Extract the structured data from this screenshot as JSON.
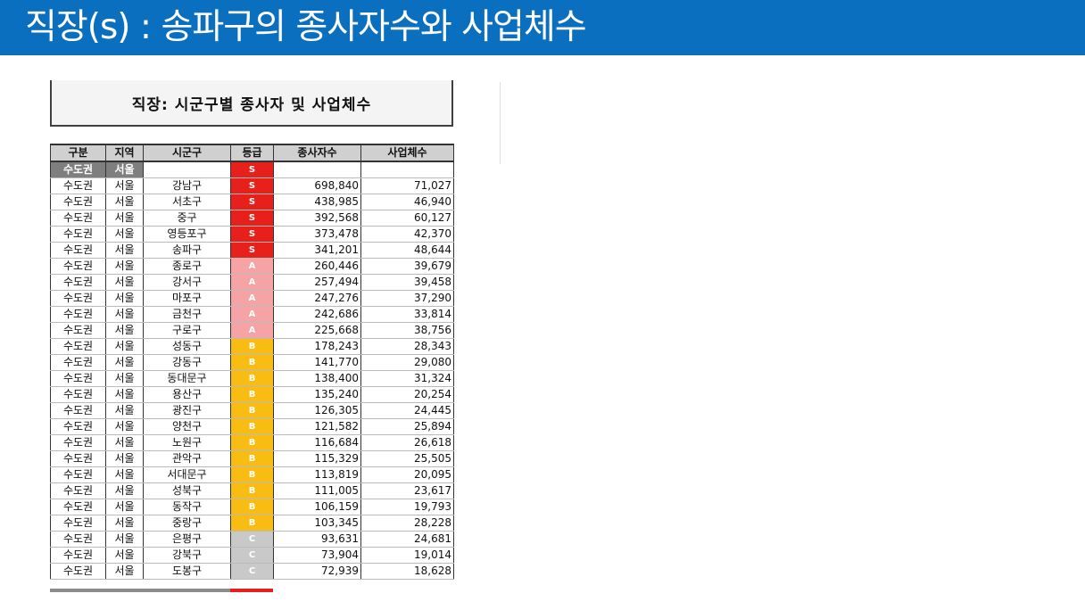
{
  "banner": {
    "title": "직장(s) : 송파구의 종사자수와 사업체수"
  },
  "sheet": {
    "title": "직장: 시군구별 종사자 및 사업체수",
    "headers": [
      "구분",
      "지역",
      "시군구",
      "등급",
      "종사자수",
      "사업체수"
    ],
    "subheader": {
      "region": "수도권",
      "area": "서울",
      "grade": "S"
    },
    "rows": [
      {
        "region": "수도권",
        "area": "서울",
        "district": "강남구",
        "grade": "S",
        "workers": "698,840",
        "businesses": "71,027"
      },
      {
        "region": "수도권",
        "area": "서울",
        "district": "서초구",
        "grade": "S",
        "workers": "438,985",
        "businesses": "46,940"
      },
      {
        "region": "수도권",
        "area": "서울",
        "district": "중구",
        "grade": "S",
        "workers": "392,568",
        "businesses": "60,127"
      },
      {
        "region": "수도권",
        "area": "서울",
        "district": "영등포구",
        "grade": "S",
        "workers": "373,478",
        "businesses": "42,370"
      },
      {
        "region": "수도권",
        "area": "서울",
        "district": "송파구",
        "grade": "S",
        "workers": "341,201",
        "businesses": "48,644"
      },
      {
        "region": "수도권",
        "area": "서울",
        "district": "종로구",
        "grade": "A",
        "workers": "260,446",
        "businesses": "39,679"
      },
      {
        "region": "수도권",
        "area": "서울",
        "district": "강서구",
        "grade": "A",
        "workers": "257,494",
        "businesses": "39,458"
      },
      {
        "region": "수도권",
        "area": "서울",
        "district": "마포구",
        "grade": "A",
        "workers": "247,276",
        "businesses": "37,290"
      },
      {
        "region": "수도권",
        "area": "서울",
        "district": "금천구",
        "grade": "A",
        "workers": "242,686",
        "businesses": "33,814"
      },
      {
        "region": "수도권",
        "area": "서울",
        "district": "구로구",
        "grade": "A",
        "workers": "225,668",
        "businesses": "38,756"
      },
      {
        "region": "수도권",
        "area": "서울",
        "district": "성동구",
        "grade": "B",
        "workers": "178,243",
        "businesses": "28,343"
      },
      {
        "region": "수도권",
        "area": "서울",
        "district": "강동구",
        "grade": "B",
        "workers": "141,770",
        "businesses": "29,080"
      },
      {
        "region": "수도권",
        "area": "서울",
        "district": "동대문구",
        "grade": "B",
        "workers": "138,400",
        "businesses": "31,324"
      },
      {
        "region": "수도권",
        "area": "서울",
        "district": "용산구",
        "grade": "B",
        "workers": "135,240",
        "businesses": "20,254"
      },
      {
        "region": "수도권",
        "area": "서울",
        "district": "광진구",
        "grade": "B",
        "workers": "126,305",
        "businesses": "24,445"
      },
      {
        "region": "수도권",
        "area": "서울",
        "district": "양천구",
        "grade": "B",
        "workers": "121,582",
        "businesses": "25,894"
      },
      {
        "region": "수도권",
        "area": "서울",
        "district": "노원구",
        "grade": "B",
        "workers": "116,684",
        "businesses": "26,618"
      },
      {
        "region": "수도권",
        "area": "서울",
        "district": "관악구",
        "grade": "B",
        "workers": "115,329",
        "businesses": "25,505"
      },
      {
        "region": "수도권",
        "area": "서울",
        "district": "서대문구",
        "grade": "B",
        "workers": "113,819",
        "businesses": "20,095"
      },
      {
        "region": "수도권",
        "area": "서울",
        "district": "성북구",
        "grade": "B",
        "workers": "111,005",
        "businesses": "23,617"
      },
      {
        "region": "수도권",
        "area": "서울",
        "district": "동작구",
        "grade": "B",
        "workers": "106,159",
        "businesses": "19,793"
      },
      {
        "region": "수도권",
        "area": "서울",
        "district": "중랑구",
        "grade": "B",
        "workers": "103,345",
        "businesses": "28,228"
      },
      {
        "region": "수도권",
        "area": "서울",
        "district": "은평구",
        "grade": "C",
        "workers": "93,631",
        "businesses": "24,681"
      },
      {
        "region": "수도권",
        "area": "서울",
        "district": "강북구",
        "grade": "C",
        "workers": "73,904",
        "businesses": "19,014"
      },
      {
        "region": "수도권",
        "area": "서울",
        "district": "도봉구",
        "grade": "C",
        "workers": "72,939",
        "businesses": "18,628"
      }
    ]
  },
  "colors": {
    "banner": "#0b6fc0",
    "grade_S": "#e8201c",
    "grade_A": "#f6a3a6",
    "grade_B": "#f9bc12",
    "grade_C": "#c9c9c9"
  }
}
